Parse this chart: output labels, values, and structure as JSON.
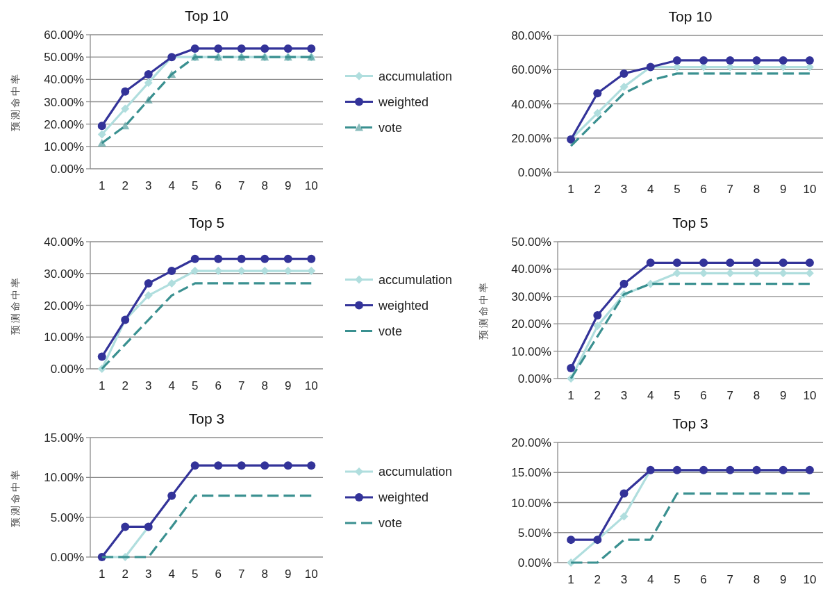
{
  "chart_data": [
    {
      "type": "line",
      "title": "Top 10",
      "ylabel": "预测命中率",
      "categories": [
        "1",
        "2",
        "3",
        "4",
        "5",
        "6",
        "7",
        "8",
        "9",
        "10"
      ],
      "ylim": [
        0,
        60
      ],
      "yticks": [
        {
          "value": 0,
          "label": "0.00%"
        },
        {
          "value": 10,
          "label": "10.00%"
        },
        {
          "value": 20,
          "label": "20.00%"
        },
        {
          "value": 30,
          "label": "30.00%"
        },
        {
          "value": 40,
          "label": "40.00%"
        },
        {
          "value": 50,
          "label": "50.00%"
        },
        {
          "value": 60,
          "label": "60.00%"
        }
      ],
      "grid": "y",
      "legend": "right",
      "series": [
        {
          "name": "accumulation",
          "color": "#b0dede",
          "marker": "diamond",
          "line_style": "solid",
          "values": [
            15.4,
            26.9,
            38.5,
            50,
            50,
            50,
            50,
            50,
            50,
            50
          ]
        },
        {
          "name": "weighted",
          "color": "#333399",
          "marker": "circle",
          "line_style": "solid",
          "values": [
            19.2,
            34.6,
            42.3,
            50,
            53.8,
            53.8,
            53.8,
            53.8,
            53.8,
            53.8
          ]
        },
        {
          "name": "vote",
          "color": "#3a9090",
          "marker": "triangle",
          "line_style": "dashed",
          "values": [
            11.5,
            19.2,
            30.8,
            42.3,
            50,
            50,
            50,
            50,
            50,
            50
          ]
        }
      ]
    },
    {
      "type": "line",
      "title": "Top 10",
      "categories": [
        "1",
        "2",
        "3",
        "4",
        "5",
        "6",
        "7",
        "8",
        "9",
        "10"
      ],
      "ylim": [
        0,
        80
      ],
      "yticks": [
        {
          "value": 0,
          "label": "0.00%"
        },
        {
          "value": 20,
          "label": "20.00%"
        },
        {
          "value": 40,
          "label": "40.00%"
        },
        {
          "value": 60,
          "label": "60.00%"
        },
        {
          "value": 80,
          "label": "80.00%"
        }
      ],
      "grid": "y",
      "series": [
        {
          "color": "#b0dede",
          "marker": "diamond",
          "line_style": "solid",
          "values": [
            19.2,
            34.6,
            50,
            61.5,
            61.5,
            61.5,
            61.5,
            61.5,
            61.5,
            61.5
          ]
        },
        {
          "color": "#333399",
          "marker": "circle",
          "line_style": "solid",
          "values": [
            19.2,
            46.2,
            57.7,
            61.5,
            65.4,
            65.4,
            65.4,
            65.4,
            65.4,
            65.4
          ]
        },
        {
          "color": "#3a9090",
          "marker": "none",
          "line_style": "dashed",
          "values": [
            15.4,
            30.8,
            46.2,
            53.8,
            57.7,
            57.7,
            57.7,
            57.7,
            57.7,
            57.7
          ]
        }
      ]
    },
    {
      "type": "line",
      "title": "Top 5",
      "ylabel": "预测命中率",
      "categories": [
        "1",
        "2",
        "3",
        "4",
        "5",
        "6",
        "7",
        "8",
        "9",
        "10"
      ],
      "ylim": [
        0,
        40
      ],
      "yticks": [
        {
          "value": 0,
          "label": "0.00%"
        },
        {
          "value": 10,
          "label": "10.00%"
        },
        {
          "value": 20,
          "label": "20.00%"
        },
        {
          "value": 30,
          "label": "30.00%"
        },
        {
          "value": 40,
          "label": "40.00%"
        }
      ],
      "grid": "y",
      "legend": "right",
      "series": [
        {
          "name": "accumulation",
          "color": "#b0dede",
          "marker": "diamond",
          "line_style": "solid",
          "values": [
            0,
            15.4,
            23.1,
            26.9,
            30.8,
            30.8,
            30.8,
            30.8,
            30.8,
            30.8
          ]
        },
        {
          "name": "weighted",
          "color": "#333399",
          "marker": "circle",
          "line_style": "solid",
          "values": [
            3.8,
            15.4,
            26.9,
            30.8,
            34.6,
            34.6,
            34.6,
            34.6,
            34.6,
            34.6
          ]
        },
        {
          "name": "vote",
          "color": "#3a9090",
          "marker": "none",
          "line_style": "dashed",
          "values": [
            0,
            7.7,
            15.4,
            23.1,
            26.9,
            26.9,
            26.9,
            26.9,
            26.9,
            26.9
          ]
        }
      ]
    },
    {
      "type": "line",
      "title": "Top 5",
      "ylabel": "预测命中率",
      "categories": [
        "1",
        "2",
        "3",
        "4",
        "5",
        "6",
        "7",
        "8",
        "9",
        "10"
      ],
      "ylim": [
        0,
        50
      ],
      "yticks": [
        {
          "value": 0,
          "label": "0.00%"
        },
        {
          "value": 10,
          "label": "10.00%"
        },
        {
          "value": 20,
          "label": "20.00%"
        },
        {
          "value": 30,
          "label": "30.00%"
        },
        {
          "value": 40,
          "label": "40.00%"
        },
        {
          "value": 50,
          "label": "50.00%"
        }
      ],
      "grid": "y",
      "series": [
        {
          "color": "#b0dede",
          "marker": "diamond",
          "line_style": "solid",
          "values": [
            0,
            19.2,
            30.8,
            34.6,
            38.5,
            38.5,
            38.5,
            38.5,
            38.5,
            38.5
          ]
        },
        {
          "color": "#333399",
          "marker": "circle",
          "line_style": "solid",
          "values": [
            3.8,
            23.1,
            34.6,
            42.3,
            42.3,
            42.3,
            42.3,
            42.3,
            42.3,
            42.3
          ]
        },
        {
          "color": "#3a9090",
          "marker": "none",
          "line_style": "dashed",
          "values": [
            0,
            15.4,
            30.8,
            34.6,
            34.6,
            34.6,
            34.6,
            34.6,
            34.6,
            34.6
          ]
        }
      ]
    },
    {
      "type": "line",
      "title": "Top 3",
      "ylabel": "预测命中率",
      "categories": [
        "1",
        "2",
        "3",
        "4",
        "5",
        "6",
        "7",
        "8",
        "9",
        "10"
      ],
      "ylim": [
        0,
        15
      ],
      "yticks": [
        {
          "value": 0,
          "label": "0.00%"
        },
        {
          "value": 5,
          "label": "5.00%"
        },
        {
          "value": 10,
          "label": "10.00%"
        },
        {
          "value": 15,
          "label": "15.00%"
        }
      ],
      "grid": "y",
      "legend": "right",
      "series": [
        {
          "name": "accumulation",
          "color": "#b0dede",
          "marker": "diamond",
          "line_style": "solid",
          "values": [
            0,
            0,
            3.8,
            null,
            null,
            null,
            null,
            null,
            null,
            null
          ]
        },
        {
          "name": "weighted",
          "color": "#333399",
          "marker": "circle",
          "line_style": "solid",
          "values": [
            0,
            3.8,
            3.8,
            7.7,
            11.5,
            11.5,
            11.5,
            11.5,
            11.5,
            11.5
          ]
        },
        {
          "name": "vote",
          "color": "#3a9090",
          "marker": "none",
          "line_style": "dashed",
          "values": [
            0,
            0,
            0,
            3.8,
            7.7,
            7.7,
            7.7,
            7.7,
            7.7,
            7.7
          ]
        }
      ]
    },
    {
      "type": "line",
      "title": "Top 3",
      "categories": [
        "1",
        "2",
        "3",
        "4",
        "5",
        "6",
        "7",
        "8",
        "9",
        "10"
      ],
      "ylim": [
        0,
        20
      ],
      "yticks": [
        {
          "value": 0,
          "label": "0.00%"
        },
        {
          "value": 5,
          "label": "5.00%"
        },
        {
          "value": 10,
          "label": "10.00%"
        },
        {
          "value": 15,
          "label": "15.00%"
        },
        {
          "value": 20,
          "label": "20.00%"
        }
      ],
      "grid": "y",
      "series": [
        {
          "color": "#b0dede",
          "marker": "diamond",
          "line_style": "solid",
          "values": [
            0,
            3.8,
            7.7,
            15.4,
            15.4,
            15.4,
            15.4,
            15.4,
            15.4,
            15.4
          ]
        },
        {
          "color": "#333399",
          "marker": "circle",
          "line_style": "solid",
          "values": [
            3.8,
            3.8,
            11.5,
            15.4,
            15.4,
            15.4,
            15.4,
            15.4,
            15.4,
            15.4
          ]
        },
        {
          "color": "#3a9090",
          "marker": "none",
          "line_style": "dashed",
          "values": [
            0,
            0,
            3.8,
            3.8,
            11.5,
            11.5,
            11.5,
            11.5,
            11.5,
            11.5
          ]
        }
      ]
    }
  ]
}
